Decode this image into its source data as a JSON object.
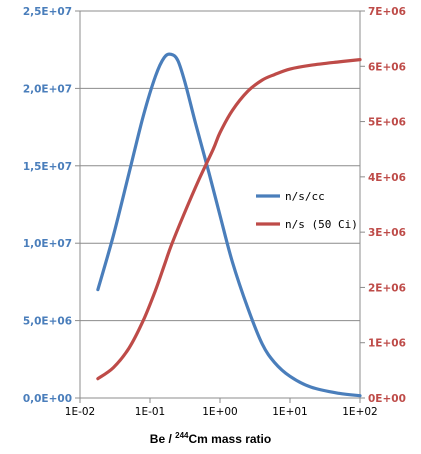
{
  "chart_data": {
    "type": "line",
    "xlabel_prefix": "Be / ",
    "xlabel_sup": "244",
    "xlabel_suffix": "Cm mass ratio",
    "x_scale": "log",
    "xlim": [
      0.01,
      100
    ],
    "x_ticks": [
      "1E-02",
      "1E-01",
      "1E+00",
      "1E+01",
      "1E+02"
    ],
    "y_left": {
      "lim": [
        0,
        25000000
      ],
      "ticks": [
        0,
        5000000,
        10000000,
        15000000,
        20000000,
        25000000
      ],
      "tick_labels": [
        "0,0E+00",
        "5,0E+06",
        "1,0E+07",
        "1,5E+07",
        "2,0E+07",
        "2,5E+07"
      ],
      "color": "#4a7ebb"
    },
    "y_right": {
      "lim": [
        0,
        7000000
      ],
      "ticks": [
        0,
        1000000,
        2000000,
        3000000,
        4000000,
        5000000,
        6000000,
        7000000
      ],
      "tick_labels": [
        "0E+00",
        "1E+06",
        "2E+06",
        "3E+06",
        "4E+06",
        "5E+06",
        "6E+06",
        "7E+06"
      ],
      "color": "#be4b48"
    },
    "grid": "horizontal",
    "legend_position": "right-middle",
    "series": [
      {
        "name": "n/s/cc",
        "axis": "left",
        "color": "#4a7ebb",
        "x": [
          0.018,
          0.03,
          0.05,
          0.08,
          0.12,
          0.16,
          0.2,
          0.25,
          0.32,
          0.45,
          0.7,
          1.0,
          1.5,
          2.5,
          4.0,
          6.0,
          10,
          20,
          50,
          100
        ],
        "y": [
          7000000,
          10500000,
          14500000,
          18200000,
          20800000,
          22000000,
          22200000,
          21800000,
          20300000,
          17700000,
          14500000,
          11800000,
          8800000,
          5800000,
          3500000,
          2300000,
          1400000,
          700000,
          300000,
          150000
        ]
      },
      {
        "name": "n/s (50 Ci)",
        "axis": "right",
        "color": "#be4b48",
        "x": [
          0.018,
          0.03,
          0.05,
          0.08,
          0.12,
          0.16,
          0.2,
          0.3,
          0.5,
          0.8,
          1.0,
          1.5,
          2.5,
          4.0,
          6.0,
          10,
          20,
          50,
          100
        ],
        "y": [
          350000,
          550000,
          900000,
          1400000,
          1950000,
          2400000,
          2750000,
          3300000,
          3950000,
          4500000,
          4800000,
          5200000,
          5550000,
          5750000,
          5850000,
          5950000,
          6020000,
          6080000,
          6120000
        ]
      }
    ]
  }
}
